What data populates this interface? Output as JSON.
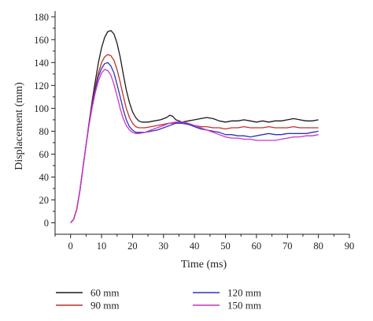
{
  "chart_data": {
    "type": "line",
    "title": "",
    "xlabel": "Time (ms)",
    "ylabel": "Displacement (mm)",
    "xlim": [
      -5,
      90
    ],
    "ylim": [
      -10,
      185
    ],
    "xticks": [
      0,
      10,
      20,
      30,
      40,
      50,
      60,
      70,
      80,
      90
    ],
    "yticks": [
      0,
      20,
      40,
      60,
      80,
      100,
      120,
      140,
      160,
      180
    ],
    "grid": false,
    "legend_placement": "bottom",
    "series": [
      {
        "name": "60 mm",
        "color": "#1a1a1a",
        "points": [
          [
            0,
            0
          ],
          [
            1,
            3
          ],
          [
            2,
            12
          ],
          [
            3,
            28
          ],
          [
            4,
            48
          ],
          [
            5,
            68
          ],
          [
            6,
            88
          ],
          [
            7,
            107
          ],
          [
            8,
            124
          ],
          [
            9,
            140
          ],
          [
            10,
            153
          ],
          [
            11,
            162
          ],
          [
            12,
            167
          ],
          [
            13,
            168
          ],
          [
            14,
            165
          ],
          [
            15,
            157
          ],
          [
            16,
            145
          ],
          [
            17,
            130
          ],
          [
            18,
            116
          ],
          [
            19,
            105
          ],
          [
            20,
            97
          ],
          [
            21,
            92
          ],
          [
            22,
            89
          ],
          [
            23,
            88
          ],
          [
            25,
            88
          ],
          [
            27,
            89
          ],
          [
            29,
            90
          ],
          [
            31,
            92
          ],
          [
            32,
            94
          ],
          [
            33,
            93
          ],
          [
            34,
            90
          ],
          [
            36,
            88
          ],
          [
            38,
            89
          ],
          [
            40,
            90
          ],
          [
            42,
            91
          ],
          [
            44,
            92
          ],
          [
            46,
            91
          ],
          [
            48,
            89
          ],
          [
            50,
            88
          ],
          [
            52,
            89
          ],
          [
            54,
            89
          ],
          [
            56,
            90
          ],
          [
            58,
            89
          ],
          [
            60,
            88
          ],
          [
            62,
            89
          ],
          [
            64,
            88
          ],
          [
            66,
            89
          ],
          [
            68,
            89
          ],
          [
            70,
            90
          ],
          [
            72,
            91
          ],
          [
            74,
            90
          ],
          [
            76,
            89
          ],
          [
            78,
            89
          ],
          [
            80,
            90
          ]
        ]
      },
      {
        "name": "90 mm",
        "color": "#c0302a",
        "points": [
          [
            0,
            0
          ],
          [
            1,
            3
          ],
          [
            2,
            12
          ],
          [
            3,
            28
          ],
          [
            4,
            48
          ],
          [
            5,
            68
          ],
          [
            6,
            88
          ],
          [
            7,
            105
          ],
          [
            8,
            119
          ],
          [
            9,
            131
          ],
          [
            10,
            140
          ],
          [
            11,
            145
          ],
          [
            12,
            147
          ],
          [
            13,
            146
          ],
          [
            14,
            142
          ],
          [
            15,
            134
          ],
          [
            16,
            123
          ],
          [
            17,
            111
          ],
          [
            18,
            100
          ],
          [
            19,
            92
          ],
          [
            20,
            87
          ],
          [
            21,
            84
          ],
          [
            22,
            83
          ],
          [
            24,
            83
          ],
          [
            26,
            84
          ],
          [
            28,
            85
          ],
          [
            30,
            86
          ],
          [
            32,
            87
          ],
          [
            34,
            87
          ],
          [
            36,
            87
          ],
          [
            38,
            86
          ],
          [
            40,
            85
          ],
          [
            42,
            84
          ],
          [
            44,
            84
          ],
          [
            46,
            83
          ],
          [
            48,
            83
          ],
          [
            50,
            82
          ],
          [
            52,
            83
          ],
          [
            54,
            83
          ],
          [
            56,
            84
          ],
          [
            58,
            83
          ],
          [
            60,
            83
          ],
          [
            62,
            83
          ],
          [
            64,
            84
          ],
          [
            66,
            83
          ],
          [
            68,
            83
          ],
          [
            70,
            83
          ],
          [
            72,
            84
          ],
          [
            74,
            83
          ],
          [
            76,
            83
          ],
          [
            78,
            83
          ],
          [
            80,
            83
          ]
        ]
      },
      {
        "name": "120 mm",
        "color": "#2b36b4",
        "points": [
          [
            0,
            0
          ],
          [
            1,
            3
          ],
          [
            2,
            12
          ],
          [
            3,
            28
          ],
          [
            4,
            48
          ],
          [
            5,
            68
          ],
          [
            6,
            87
          ],
          [
            7,
            103
          ],
          [
            8,
            117
          ],
          [
            9,
            128
          ],
          [
            10,
            135
          ],
          [
            11,
            139
          ],
          [
            12,
            140
          ],
          [
            13,
            137
          ],
          [
            14,
            131
          ],
          [
            15,
            121
          ],
          [
            16,
            110
          ],
          [
            17,
            99
          ],
          [
            18,
            90
          ],
          [
            19,
            84
          ],
          [
            20,
            81
          ],
          [
            21,
            79
          ],
          [
            22,
            79
          ],
          [
            24,
            79
          ],
          [
            26,
            80
          ],
          [
            28,
            81
          ],
          [
            30,
            83
          ],
          [
            32,
            85
          ],
          [
            34,
            87
          ],
          [
            36,
            87
          ],
          [
            38,
            86
          ],
          [
            40,
            84
          ],
          [
            42,
            82
          ],
          [
            44,
            81
          ],
          [
            46,
            80
          ],
          [
            48,
            79
          ],
          [
            50,
            77
          ],
          [
            52,
            77
          ],
          [
            54,
            76
          ],
          [
            56,
            76
          ],
          [
            58,
            75
          ],
          [
            60,
            76
          ],
          [
            62,
            77
          ],
          [
            64,
            78
          ],
          [
            66,
            77
          ],
          [
            68,
            77
          ],
          [
            70,
            78
          ],
          [
            72,
            78
          ],
          [
            74,
            78
          ],
          [
            76,
            78
          ],
          [
            78,
            79
          ],
          [
            80,
            80
          ]
        ]
      },
      {
        "name": "150 mm",
        "color": "#cc33cc",
        "points": [
          [
            0,
            0
          ],
          [
            1,
            3
          ],
          [
            2,
            12
          ],
          [
            3,
            28
          ],
          [
            4,
            48
          ],
          [
            5,
            68
          ],
          [
            6,
            86
          ],
          [
            7,
            101
          ],
          [
            8,
            114
          ],
          [
            9,
            124
          ],
          [
            10,
            131
          ],
          [
            11,
            134
          ],
          [
            12,
            133
          ],
          [
            13,
            129
          ],
          [
            14,
            121
          ],
          [
            15,
            111
          ],
          [
            16,
            100
          ],
          [
            17,
            91
          ],
          [
            18,
            85
          ],
          [
            19,
            81
          ],
          [
            20,
            79
          ],
          [
            21,
            78
          ],
          [
            22,
            78
          ],
          [
            24,
            79
          ],
          [
            26,
            81
          ],
          [
            28,
            83
          ],
          [
            30,
            85
          ],
          [
            32,
            87
          ],
          [
            34,
            88
          ],
          [
            36,
            88
          ],
          [
            38,
            87
          ],
          [
            40,
            85
          ],
          [
            42,
            83
          ],
          [
            44,
            81
          ],
          [
            46,
            79
          ],
          [
            48,
            77
          ],
          [
            50,
            75
          ],
          [
            52,
            74
          ],
          [
            54,
            74
          ],
          [
            56,
            73
          ],
          [
            58,
            73
          ],
          [
            60,
            72
          ],
          [
            62,
            72
          ],
          [
            64,
            72
          ],
          [
            66,
            72
          ],
          [
            68,
            73
          ],
          [
            70,
            74
          ],
          [
            72,
            75
          ],
          [
            74,
            75
          ],
          [
            76,
            76
          ],
          [
            78,
            76
          ],
          [
            80,
            77
          ]
        ]
      }
    ]
  }
}
